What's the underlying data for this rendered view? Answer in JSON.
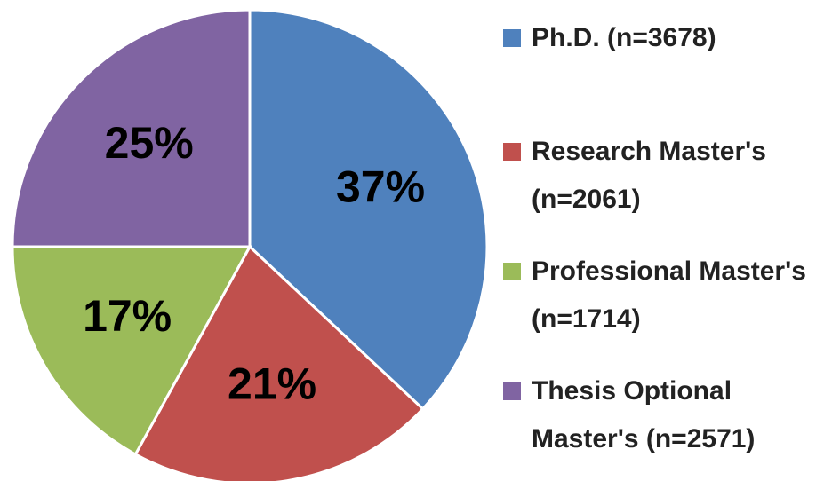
{
  "chart_data": {
    "type": "pie",
    "categories": [
      "Ph.D. (n=3678)",
      "Research Master's (n=2061)",
      "Professional Master's (n=1714)",
      "Thesis Optional Master's (n=2571)"
    ],
    "values": [
      37,
      21,
      17,
      25
    ],
    "value_labels": [
      "37%",
      "21%",
      "17%",
      "25%"
    ],
    "colors": [
      "#4f81bd",
      "#c0504d",
      "#9bbb59",
      "#8064a2"
    ]
  }
}
